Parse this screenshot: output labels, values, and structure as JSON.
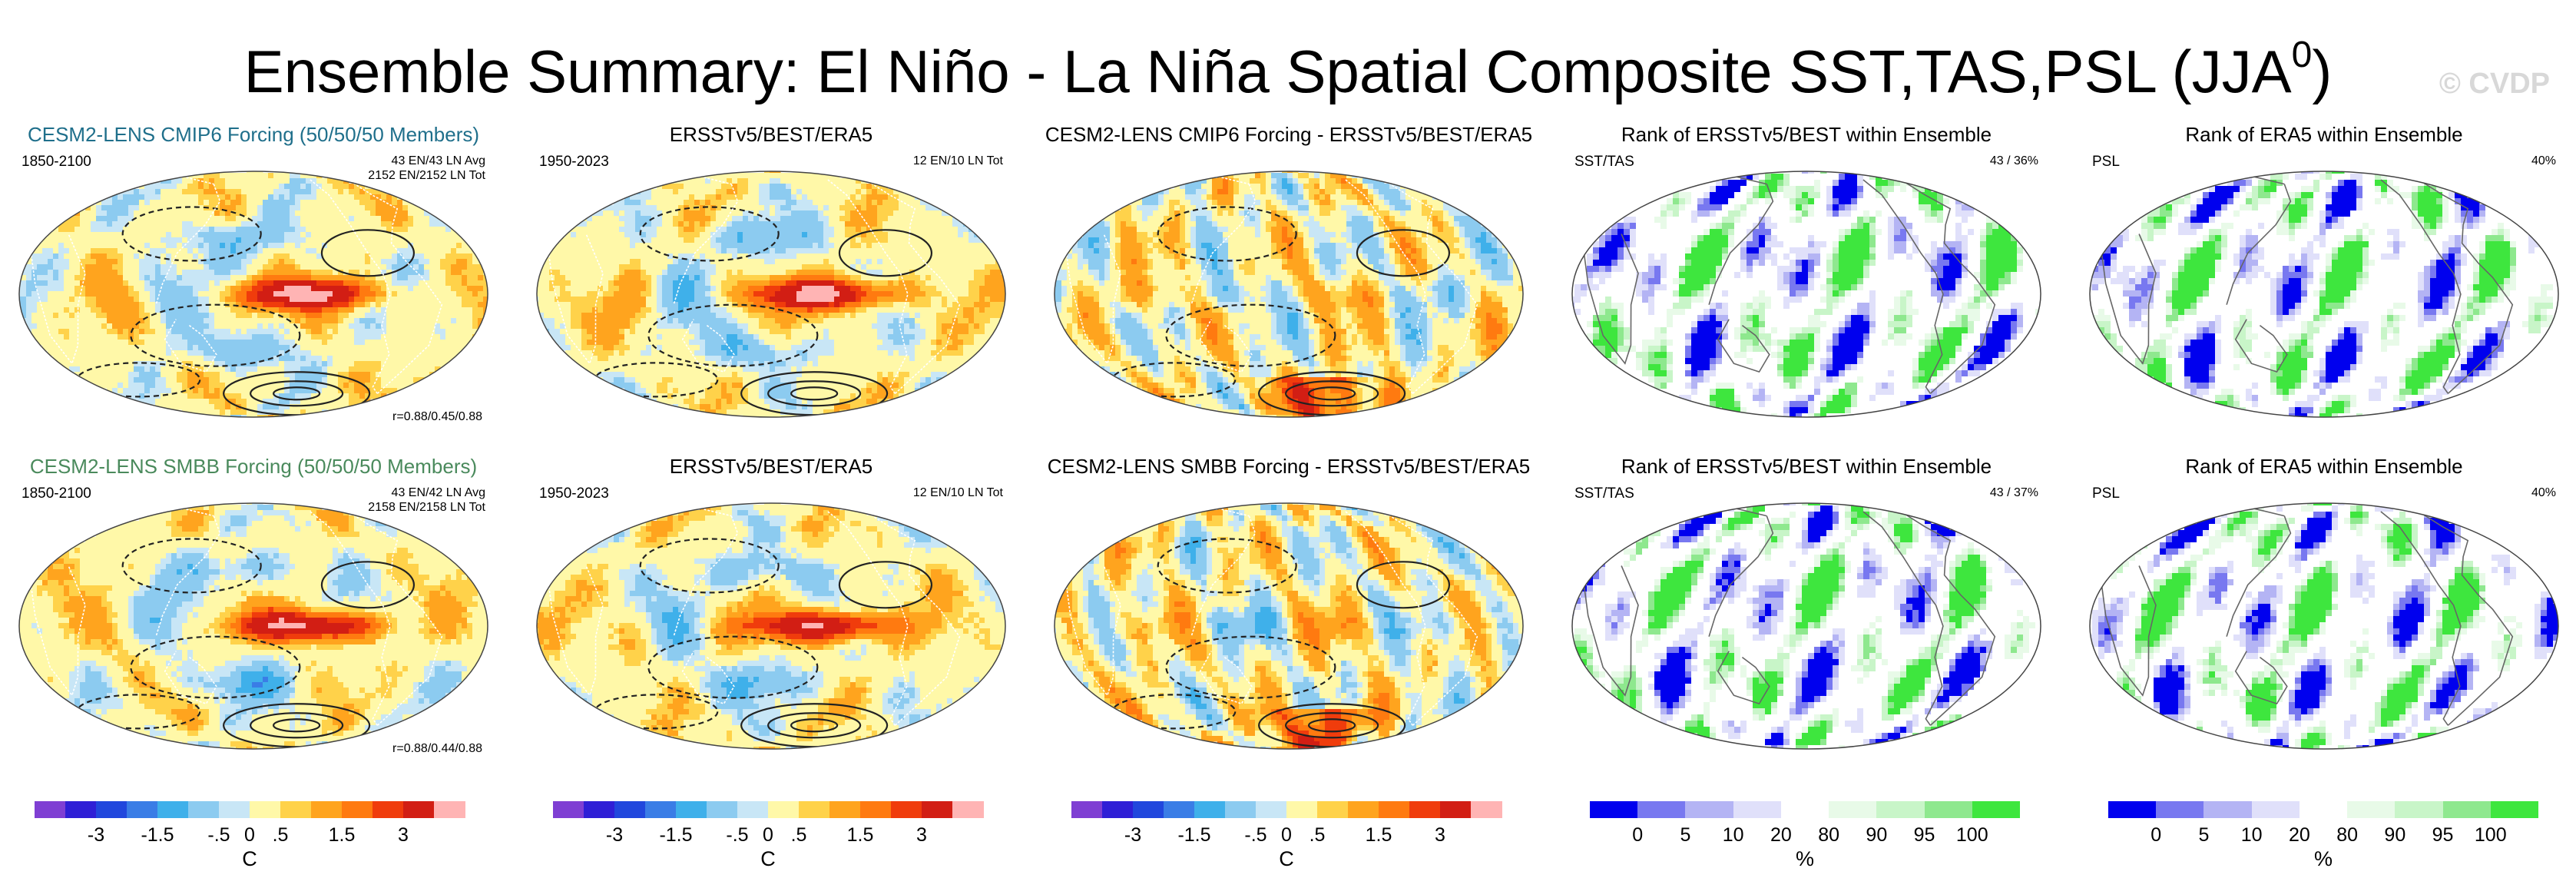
{
  "title": {
    "main": "Ensemble Summary: El Niño - La Niña Spatial Composite SST,TAS,PSL (JJA",
    "sup": "0",
    "close": ")"
  },
  "watermark": "© CVDP",
  "colors": {
    "temp_scale": [
      "#7f3fd3",
      "#2f1fd6",
      "#2147dd",
      "#3a7de6",
      "#3fb0ea",
      "#8ccbf0",
      "#c8e6f6",
      "#fff8a8",
      "#ffd24a",
      "#ffa41e",
      "#ff7a10",
      "#f03c0c",
      "#d21e14",
      "#ffb4b4"
    ],
    "rank_scale": [
      "#0000ee",
      "#7878f0",
      "#b4b4f4",
      "#e0e0fa",
      "#ffffff",
      "#e8fae8",
      "#c8f5c8",
      "#8ee88e",
      "#3ee63e"
    ],
    "teal_title": "#1f6f8b",
    "green_title": "#4a8a5c"
  },
  "panels": [
    {
      "title": "CESM2-LENS CMIP6 Forcing (50/50/50 Members)",
      "title_style": "teal",
      "left": "1850-2100",
      "right": [
        "43 EN/43 LN Avg",
        "2152 EN/2152 LN Tot"
      ],
      "corr": "r=0.88/0.45/0.88",
      "kind": "temp"
    },
    {
      "title": "ERSSTv5/BEST/ERA5",
      "title_style": "black",
      "left": "1950-2023",
      "right": [
        "12 EN/10 LN Tot"
      ],
      "corr": "",
      "kind": "temp"
    },
    {
      "title": "CESM2-LENS CMIP6 Forcing - ERSSTv5/BEST/ERA5",
      "title_style": "black",
      "left": "",
      "right": [],
      "corr": "",
      "kind": "diff"
    },
    {
      "title": "Rank of ERSSTv5/BEST within Ensemble",
      "title_style": "black",
      "left": "SST/TAS",
      "right": [
        "43 /  36%"
      ],
      "corr": "",
      "kind": "rank"
    },
    {
      "title": "Rank of ERA5 within Ensemble",
      "title_style": "black",
      "left": "PSL",
      "right": [
        "40%"
      ],
      "corr": "",
      "kind": "rankpsl"
    },
    {
      "title": "CESM2-LENS SMBB Forcing (50/50/50 Members)",
      "title_style": "green",
      "left": "1850-2100",
      "right": [
        "43 EN/42 LN Avg",
        "2158 EN/2158 LN Tot"
      ],
      "corr": "r=0.88/0.44/0.88",
      "kind": "temp"
    },
    {
      "title": "ERSSTv5/BEST/ERA5",
      "title_style": "black",
      "left": "1950-2023",
      "right": [
        "12 EN/10 LN Tot"
      ],
      "corr": "",
      "kind": "temp"
    },
    {
      "title": "CESM2-LENS SMBB Forcing - ERSSTv5/BEST/ERA5",
      "title_style": "black",
      "left": "",
      "right": [],
      "corr": "",
      "kind": "diff"
    },
    {
      "title": "Rank of ERSSTv5/BEST within Ensemble",
      "title_style": "black",
      "left": "SST/TAS",
      "right": [
        "43 /  37%"
      ],
      "corr": "",
      "kind": "rank"
    },
    {
      "title": "Rank of ERA5 within Ensemble",
      "title_style": "black",
      "left": "PSL",
      "right": [
        "40%"
      ],
      "corr": "",
      "kind": "rankpsl"
    }
  ],
  "colorbars": [
    {
      "kind": "temp",
      "ticks": [
        "-3",
        "-1.5",
        "-.5",
        "0",
        ".5",
        "1.5",
        "3"
      ],
      "unit": "C"
    },
    {
      "kind": "temp",
      "ticks": [
        "-3",
        "-1.5",
        "-.5",
        "0",
        ".5",
        "1.5",
        "3"
      ],
      "unit": "C"
    },
    {
      "kind": "temp",
      "ticks": [
        "-3",
        "-1.5",
        "-.5",
        "0",
        ".5",
        "1.5",
        "3"
      ],
      "unit": "C"
    },
    {
      "kind": "rank",
      "ticks": [
        "0",
        "5",
        "10",
        "20",
        "80",
        "90",
        "95",
        "100"
      ],
      "unit": "%"
    },
    {
      "kind": "rank",
      "ticks": [
        "0",
        "5",
        "10",
        "20",
        "80",
        "90",
        "95",
        "100"
      ],
      "unit": "%"
    }
  ],
  "chart_data": [
    {
      "type": "heatmap",
      "title": "CESM2-LENS CMIP6 Forcing (50/50/50 Members)",
      "period": "1850-2100",
      "variables": [
        "SST",
        "TAS",
        "PSL"
      ],
      "units": "C",
      "pattern_correlation": [
        0.88,
        0.45,
        0.88
      ]
    },
    {
      "type": "heatmap",
      "title": "ERSSTv5/BEST/ERA5",
      "period": "1950-2023",
      "units": "C"
    },
    {
      "type": "heatmap",
      "title": "CESM2-LENS CMIP6 Forcing - ERSSTv5/BEST/ERA5",
      "units": "C"
    },
    {
      "type": "heatmap",
      "title": "Rank of ERSSTv5/BEST within Ensemble",
      "variables": [
        "SST",
        "TAS"
      ],
      "units": "%",
      "rank_percent": 36
    },
    {
      "type": "heatmap",
      "title": "Rank of ERA5 within Ensemble",
      "variables": [
        "PSL"
      ],
      "units": "%",
      "rank_percent": 40
    },
    {
      "type": "heatmap",
      "title": "CESM2-LENS SMBB Forcing (50/50/50 Members)",
      "period": "1850-2100",
      "variables": [
        "SST",
        "TAS",
        "PSL"
      ],
      "units": "C",
      "pattern_correlation": [
        0.88,
        0.44,
        0.88
      ]
    },
    {
      "type": "heatmap",
      "title": "ERSSTv5/BEST/ERA5",
      "period": "1950-2023",
      "units": "C"
    },
    {
      "type": "heatmap",
      "title": "CESM2-LENS SMBB Forcing - ERSSTv5/BEST/ERA5",
      "units": "C"
    },
    {
      "type": "heatmap",
      "title": "Rank of ERSSTv5/BEST within Ensemble",
      "variables": [
        "SST",
        "TAS"
      ],
      "units": "%",
      "rank_percent": 37
    },
    {
      "type": "heatmap",
      "title": "Rank of ERA5 within Ensemble",
      "variables": [
        "PSL"
      ],
      "units": "%",
      "rank_percent": 40
    }
  ]
}
